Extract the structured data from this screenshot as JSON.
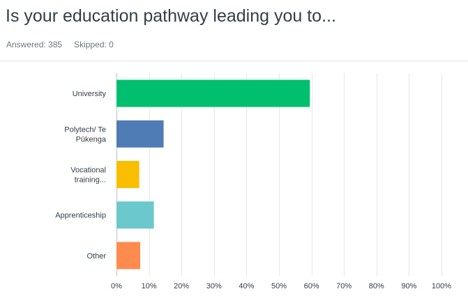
{
  "header": {
    "title": "Is your education pathway leading you to...",
    "answered": "Answered: 385",
    "skipped": "Skipped: 0"
  },
  "chart_data": {
    "type": "bar",
    "orientation": "horizontal",
    "categories": [
      [
        "University"
      ],
      [
        "Polytech/ Te",
        "Pūkenga"
      ],
      [
        "Vocational",
        "training..."
      ],
      [
        "Apprenticeship"
      ],
      [
        "Other"
      ]
    ],
    "values": [
      59.5,
      14.5,
      7.0,
      11.5,
      7.3
    ],
    "colors": [
      "#00bf6f",
      "#507cb6",
      "#f9be00",
      "#6bc8cd",
      "#ff8b4f"
    ],
    "xlim": [
      0,
      100
    ],
    "xticks": [
      "0%",
      "10%",
      "20%",
      "30%",
      "40%",
      "50%",
      "60%",
      "70%",
      "80%",
      "90%",
      "100%"
    ],
    "grid": true,
    "title": "",
    "xlabel": "",
    "ylabel": ""
  }
}
